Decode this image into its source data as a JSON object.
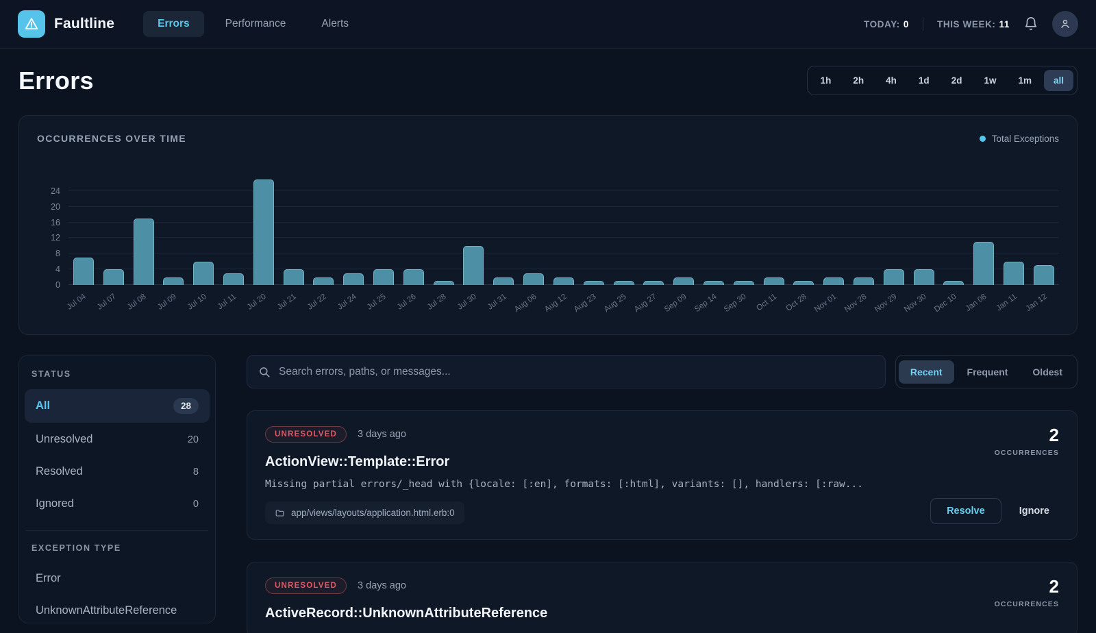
{
  "brand": {
    "name": "Faultline"
  },
  "nav": {
    "tabs": [
      {
        "label": "Errors",
        "active": true
      },
      {
        "label": "Performance",
        "active": false
      },
      {
        "label": "Alerts",
        "active": false
      }
    ]
  },
  "header_stats": {
    "today_label": "TODAY:",
    "today_value": "0",
    "week_label": "THIS WEEK:",
    "week_value": "11"
  },
  "page": {
    "title": "Errors"
  },
  "time_ranges": {
    "options": [
      "1h",
      "2h",
      "4h",
      "1d",
      "2d",
      "1w",
      "1m",
      "all"
    ],
    "active": "all"
  },
  "chart_panel": {
    "title": "OCCURRENCES OVER TIME",
    "legend": "Total Exceptions",
    "accent_color": "#55c6ee",
    "bar_color": "#4d90a6"
  },
  "chart_data": {
    "type": "bar",
    "title": "OCCURRENCES OVER TIME",
    "series_name": "Total Exceptions",
    "categories": [
      "Jul 04",
      "Jul 07",
      "Jul 08",
      "Jul 09",
      "Jul 10",
      "Jul 11",
      "Jul 20",
      "Jul 21",
      "Jul 22",
      "Jul 24",
      "Jul 25",
      "Jul 26",
      "Jul 28",
      "Jul 30",
      "Jul 31",
      "Aug 06",
      "Aug 12",
      "Aug 23",
      "Aug 25",
      "Aug 27",
      "Sep 09",
      "Sep 14",
      "Sep 30",
      "Oct 11",
      "Oct 28",
      "Nov 01",
      "Nov 28",
      "Nov 29",
      "Nov 30",
      "Dec 10",
      "Jan 08",
      "Jan 11",
      "Jan 12"
    ],
    "values": [
      7,
      4,
      17,
      2,
      6,
      3,
      27,
      4,
      2,
      3,
      4,
      4,
      1,
      10,
      2,
      3,
      2,
      1,
      1,
      1,
      2,
      1,
      1,
      2,
      1,
      2,
      2,
      4,
      4,
      1,
      11,
      6,
      5
    ],
    "xlabel": "",
    "ylabel": "",
    "ylim": [
      0,
      28
    ],
    "yticks": [
      0,
      4,
      8,
      12,
      16,
      20,
      24
    ],
    "grid": true,
    "legend_position": "top-right"
  },
  "sidebar": {
    "status_title": "STATUS",
    "status_items": [
      {
        "label": "All",
        "count": "28",
        "active": true
      },
      {
        "label": "Unresolved",
        "count": "20",
        "active": false
      },
      {
        "label": "Resolved",
        "count": "8",
        "active": false
      },
      {
        "label": "Ignored",
        "count": "0",
        "active": false
      }
    ],
    "type_title": "EXCEPTION TYPE",
    "type_items": [
      {
        "label": "Error"
      },
      {
        "label": "UnknownAttributeReference"
      }
    ]
  },
  "toolbar": {
    "search_placeholder": "Search errors, paths, or messages...",
    "sort_options": [
      {
        "label": "Recent",
        "active": true
      },
      {
        "label": "Frequent",
        "active": false
      },
      {
        "label": "Oldest",
        "active": false
      }
    ]
  },
  "cards": [
    {
      "status": "UNRESOLVED",
      "time": "3 days ago",
      "title": "ActionView::Template::Error",
      "message": "Missing partial errors/_head with {locale: [:en], formats: [:html], variants: [], handlers: [:raw...",
      "path": "app/views/layouts/application.html.erb:0",
      "occurrences": "2",
      "occurrences_label": "OCCURRENCES",
      "resolve_label": "Resolve",
      "ignore_label": "Ignore"
    },
    {
      "status": "UNRESOLVED",
      "time": "3 days ago",
      "title": "ActiveRecord::UnknownAttributeReference",
      "occurrences": "2",
      "occurrences_label": "OCCURRENCES"
    }
  ]
}
